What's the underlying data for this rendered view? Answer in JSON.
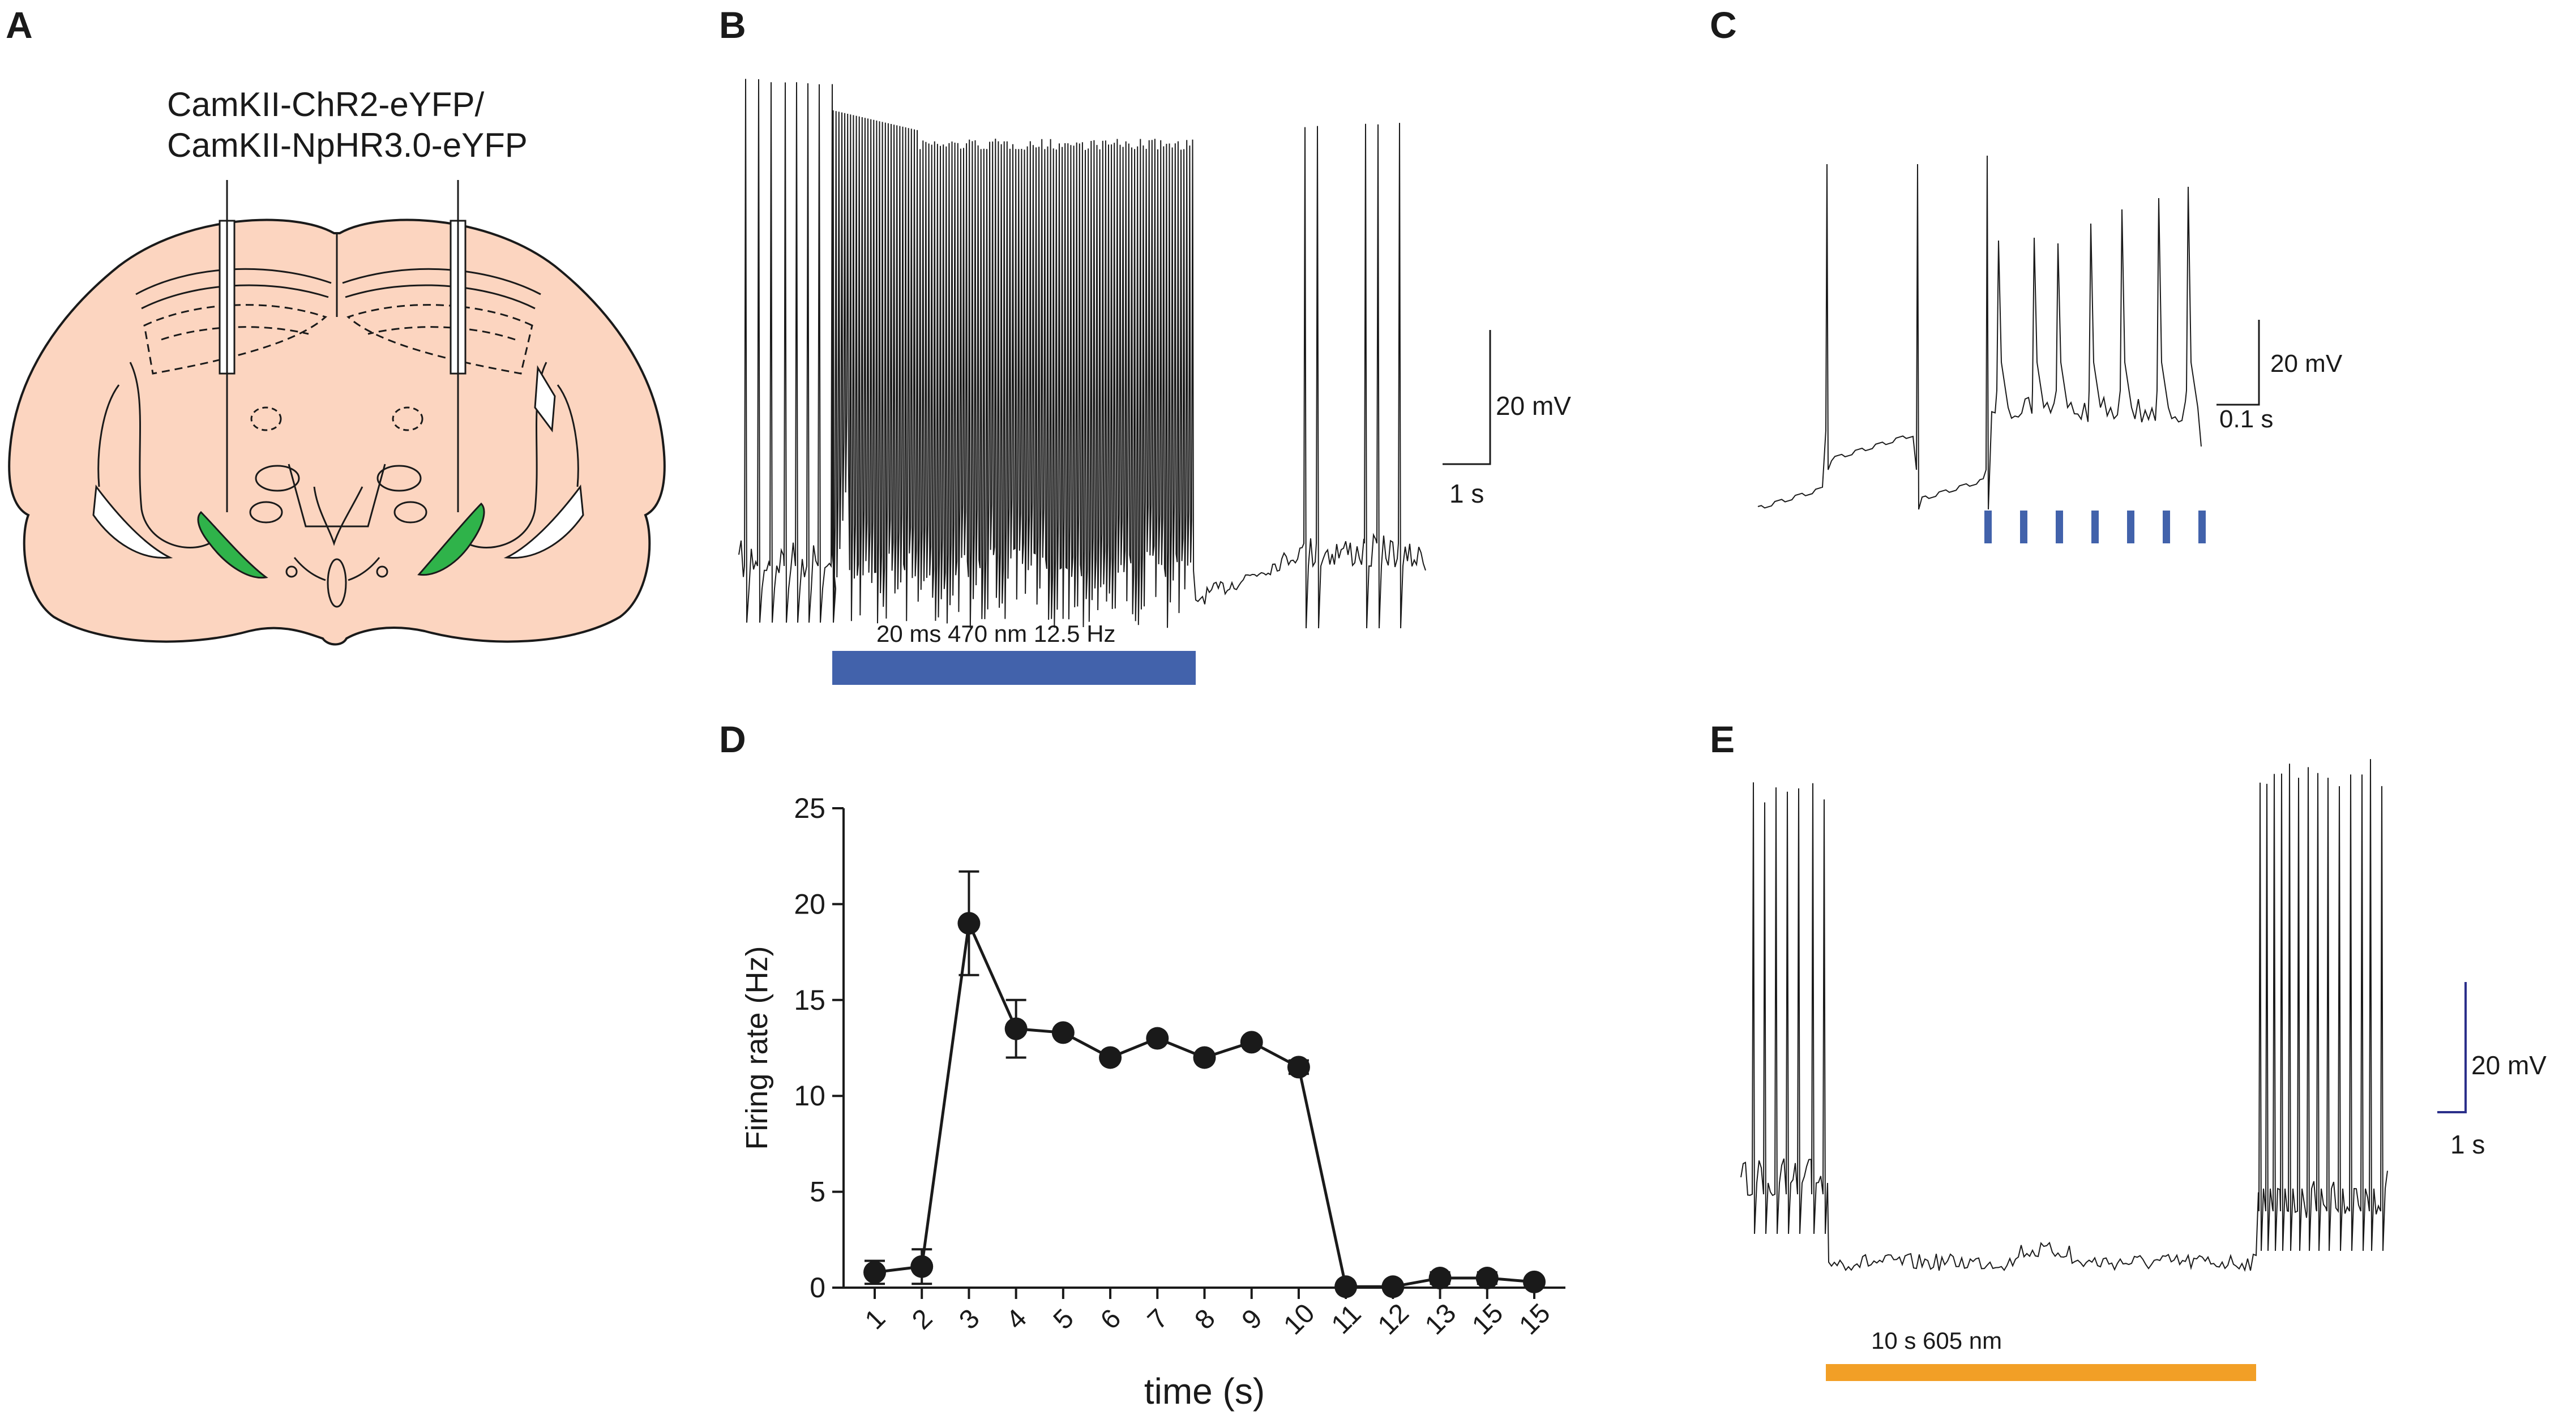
{
  "panels": {
    "a": {
      "label": "A",
      "virus_line1": "CamKII-ChR2-eYFP/",
      "virus_line2": "CamKII-NpHR3.0-eYFP",
      "colors": {
        "brain": "#fcd5c0",
        "injection": "#2fb34a",
        "outline": "#1a1a1a"
      }
    },
    "b": {
      "label": "B",
      "stim_label": "20 ms 470 nm 12.5 Hz",
      "stim_color": "#4262ab",
      "scale_v": "20 mV",
      "scale_t": "1 s"
    },
    "c": {
      "label": "C",
      "scale_v": "20 mV",
      "scale_t": "0.1 s",
      "pulse_color": "#4262ab",
      "pulse_count": 7
    },
    "d": {
      "label": "D"
    },
    "e": {
      "label": "E",
      "stim_label": "10 s 605 nm",
      "stim_color": "#f29f26",
      "scale_color": "#2b2f8a",
      "scale_v": "20 mV",
      "scale_t": "1 s"
    }
  },
  "chart_data": {
    "type": "line",
    "title": "",
    "xlabel": "time (s)",
    "ylabel": "Firing rate (Hz)",
    "ylim": [
      0,
      25
    ],
    "yticks": [
      0,
      5,
      10,
      15,
      20,
      25
    ],
    "categories": [
      "1",
      "2",
      "3",
      "4",
      "5",
      "6",
      "7",
      "8",
      "9",
      "10",
      "11",
      "12",
      "13",
      "15",
      "15"
    ],
    "values": [
      0.8,
      1.1,
      19.0,
      13.5,
      13.3,
      12.0,
      13.0,
      12.0,
      12.8,
      11.5,
      0.05,
      0.05,
      0.5,
      0.5,
      0.3
    ],
    "errors": [
      0.6,
      0.9,
      2.7,
      1.5,
      0.0,
      0.0,
      0.0,
      0.0,
      0.0,
      0.35,
      0.0,
      0.0,
      0.3,
      0.3,
      0.0
    ],
    "grid": false
  }
}
